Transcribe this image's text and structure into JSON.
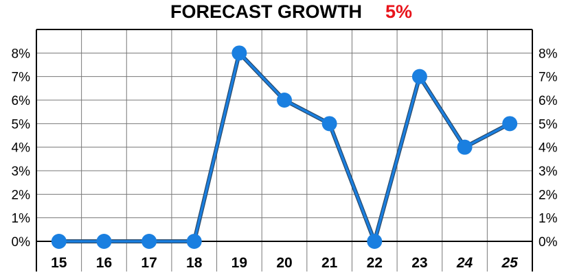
{
  "chart_data": {
    "type": "line",
    "title": "FORECAST GROWTH",
    "title_value": "5%",
    "title_value_color": "#e8141b",
    "categories": [
      "15",
      "16",
      "17",
      "18",
      "19",
      "20",
      "21",
      "22",
      "23",
      "24",
      "25"
    ],
    "forecast_categories": [
      "24",
      "25"
    ],
    "values": [
      0,
      0,
      0,
      0,
      8,
      6,
      5,
      0,
      7,
      4,
      5
    ],
    "y_unit": "%",
    "ylim": [
      0,
      9
    ],
    "yticks": [
      0,
      1,
      2,
      3,
      4,
      5,
      6,
      7,
      8
    ],
    "ytick_labels": [
      "0%",
      "1%",
      "2%",
      "3%",
      "4%",
      "5%",
      "6%",
      "7%",
      "8%"
    ],
    "grid": true,
    "y_axis_both_sides": true,
    "line_color": "#1a7fe0",
    "line_outline_color": "#2a4a6a"
  }
}
